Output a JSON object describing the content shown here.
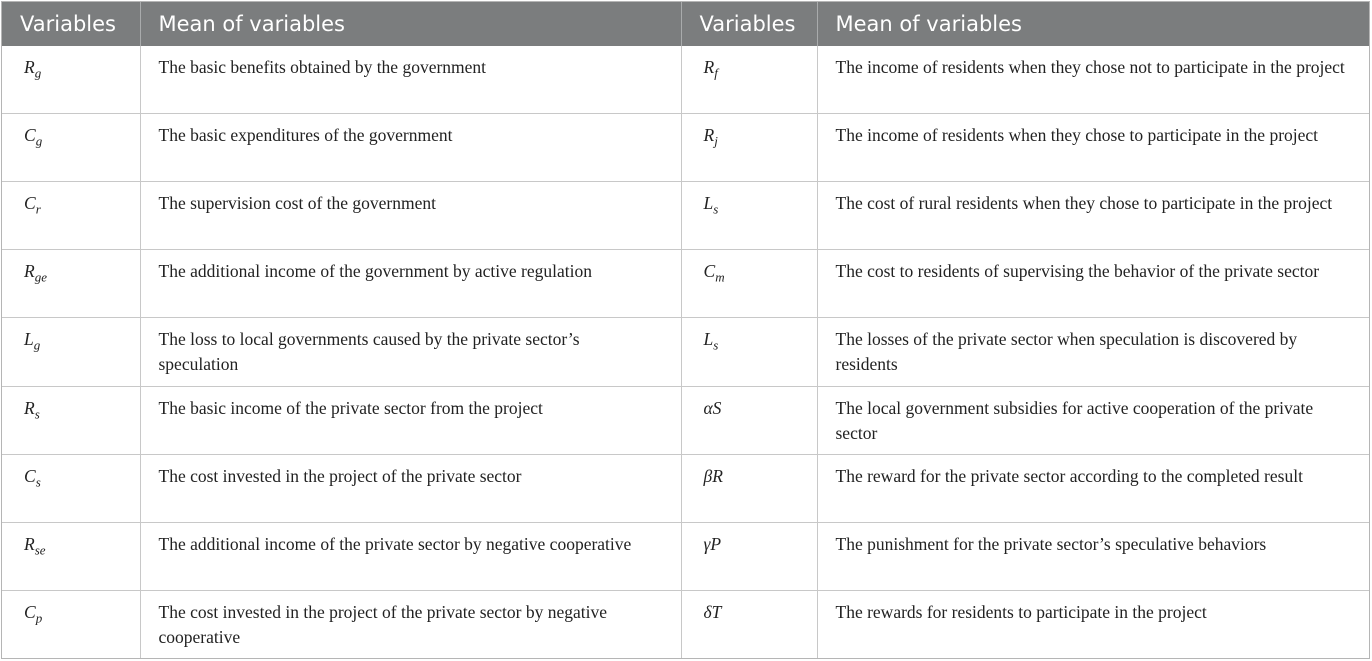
{
  "headers": [
    "Variables",
    "Mean of variables",
    "Variables",
    "Mean of variables"
  ],
  "rows": [
    [
      "Rg",
      "The basic benefits obtained by the government",
      "Rf",
      "The income of residents when they chose not to participate in the project"
    ],
    [
      "Cg",
      "The basic expenditures of the government",
      "Rj",
      "The income of residents when they chose to participate in the project"
    ],
    [
      "Cr",
      "The supervision cost of the government",
      "Ls",
      "The cost of rural residents when they chose to participate in the project"
    ],
    [
      "Rge",
      "The additional income of the government by active regulation",
      "Cm",
      "The cost to residents of supervising the behavior of the private sector"
    ],
    [
      "Lg",
      "The loss to local governments caused by the private sector’s speculation",
      "Ls",
      "The losses of the private sector when speculation is discovered by residents"
    ],
    [
      "Rs",
      "The basic income of the private sector from the project",
      "αS",
      "The local government subsidies for active cooperation of the private sector"
    ],
    [
      "Cs",
      "The cost invested in the project of the private sector",
      "βR",
      "The reward for the private sector according to the completed result"
    ],
    [
      "Rse",
      "The additional income of the private sector by negative cooperative",
      "γP",
      "The punishment for the private sector’s speculative behaviors"
    ],
    [
      "Cp",
      "The cost invested in the project of the private sector by negative cooperative",
      "δT",
      "The rewards for residents to participate in the project"
    ]
  ]
}
